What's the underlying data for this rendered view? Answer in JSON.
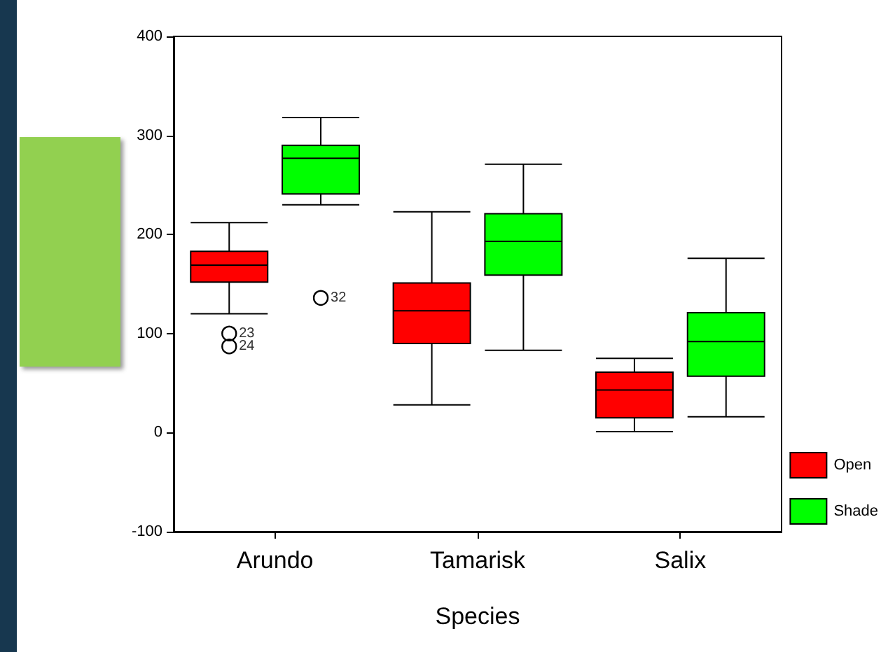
{
  "chart_data": {
    "type": "box",
    "categories": [
      "Arundo",
      "Tamarisk",
      "Salix"
    ],
    "xlabel": "Species",
    "ylim": [
      -100,
      400
    ],
    "yticks": [
      -100,
      0,
      100,
      200,
      300,
      400
    ],
    "grid": false,
    "legend": "bottom right",
    "series": [
      {
        "name": "Open",
        "color": "#ff0000",
        "boxes": [
          {
            "low": 120,
            "q1": 152,
            "median": 169,
            "q3": 183,
            "high": 212,
            "outliers": [
              100,
              87
            ]
          },
          {
            "low": 28,
            "q1": 90,
            "median": 123,
            "q3": 151,
            "high": 223
          },
          {
            "low": 1,
            "q1": 15,
            "median": 43,
            "q3": 61,
            "high": 75
          }
        ]
      },
      {
        "name": "Shade",
        "color": "#00ff00",
        "boxes": [
          {
            "low": 230,
            "q1": 241,
            "median": 277,
            "q3": 290,
            "high": 318,
            "outliers": [
              136
            ]
          },
          {
            "low": 83,
            "q1": 159,
            "median": 193,
            "q3": 221,
            "high": 271
          },
          {
            "low": 16,
            "q1": 57,
            "median": 92,
            "q3": 121,
            "high": 176
          }
        ]
      }
    ],
    "annotations": [
      "23",
      "24",
      "32"
    ]
  }
}
